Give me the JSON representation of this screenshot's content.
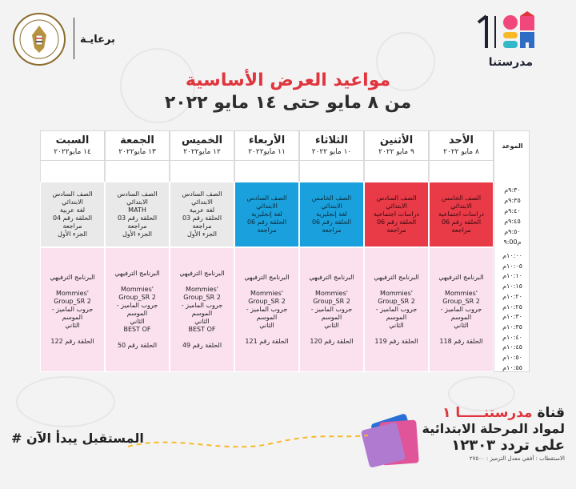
{
  "brand": {
    "name": "مدرستنا",
    "number": "1",
    "colors": {
      "pink": "#f0487a",
      "yellow": "#f7b928",
      "teal": "#33b8c9",
      "blue": "#2f6cc6",
      "red": "#e0353d"
    }
  },
  "ministry": {
    "logo": "ministry-of-education-seal",
    "sponsor": "برعايـة"
  },
  "title": {
    "line1": "مواعيد العرض الأساسية",
    "line2": "من ٨ مايو حتى ١٤ مايو ٢٠٢٢"
  },
  "schedule": {
    "time_header": "الموعد",
    "days": [
      {
        "day": "الأحد",
        "date": "٨ مايو ٢٠٢٢"
      },
      {
        "day": "الأثنين",
        "date": "٩ مايو ٢٠٢٢"
      },
      {
        "day": "الثلاثاء",
        "date": "١٠ مايو ٢٠٢٢"
      },
      {
        "day": "الأربعاء",
        "date": "١١ مايو٢٠٢٢"
      },
      {
        "day": "الخميس",
        "date": "١٢ مايو٢٠٢٢"
      },
      {
        "day": "الجمعة",
        "date": "١٣ مايو٢٠٢٢"
      },
      {
        "day": "السبت",
        "date": "١٤ مايو٢٠٢٢"
      }
    ],
    "times": [
      "٩:٣٠م",
      "٩:٣٥م",
      "٩:٤٠م",
      "٩:٤٥م",
      "٩:٥٠م",
      "٩:00م",
      "١٠:٠٠م",
      "١٠:٠٥م",
      "١٠:١٠م",
      "١٠:١٥م",
      "١٠:٢٠م",
      "١٠:٢٥م",
      "١٠:٣٠م",
      "١٠:٣٥م",
      "١٠:٤٠م",
      "١٠:٤٥م",
      "١٠:٥٠م",
      "١٠:٥٥م"
    ],
    "first_block": [
      {
        "color": "red",
        "lines": [
          "الصف الخامس الابتدائي",
          "دراسات اجتماعية",
          "الحلقة رقم 06 مراجعة"
        ]
      },
      {
        "color": "red",
        "lines": [
          "الصف السادس الابتدائي",
          "دراسات اجتماعية",
          "الحلقة رقم 06 مراجعة"
        ]
      },
      {
        "color": "blue",
        "lines": [
          "الصف الخامس الابتدائي",
          "لغة إنجليزية",
          "الحلقة رقم 06 مراجعة"
        ]
      },
      {
        "color": "blue",
        "lines": [
          "الصف السادس الابتدائي",
          "لغة إنجليزية",
          "الحلقة رقم 06 مراجعة"
        ]
      },
      {
        "color": "gray",
        "lines": [
          "الصف السادس الابتدائي",
          "لغة عربية",
          "الحلقة رقم 03 مراجعة",
          "الجزء الأول"
        ]
      },
      {
        "color": "gray",
        "lines": [
          "الصف السادس الابتدائي",
          "MATH",
          "الحلقة رقم 03 مراجعة",
          "الجزء الأول"
        ]
      },
      {
        "color": "gray",
        "lines": [
          "الصف السادس الابتدائي",
          "لغة عربية",
          "الحلقة رقم 04 مراجعة",
          "الجزء الأول"
        ]
      }
    ],
    "second_block": [
      {
        "title": "البرنامج الترفيهي",
        "lines": [
          "Mommies' Group_SR 2",
          "جروب الماميز - الموسم",
          "الثاني"
        ],
        "extra": "",
        "episode": "الحلقة رقم 118"
      },
      {
        "title": "البرنامج الترفيهي",
        "lines": [
          "Mommies' Group_SR 2",
          "جروب الماميز - الموسم",
          "الثاني"
        ],
        "extra": "",
        "episode": "الحلقة رقم 119"
      },
      {
        "title": "البرنامج الترفيهي",
        "lines": [
          "Mommies' Group_SR 2",
          "جروب الماميز - الموسم",
          "الثاني"
        ],
        "extra": "",
        "episode": "الحلقة رقم 120"
      },
      {
        "title": "البرنامج الترفيهي",
        "lines": [
          "Mommies' Group_SR 2",
          "جروب الماميز - الموسم",
          "الثاني"
        ],
        "extra": "",
        "episode": "الحلقة رقم 121"
      },
      {
        "title": "البرنامج الترفيهي",
        "lines": [
          "Mommies' Group_SR 2",
          "جروب الماميز - الموسم",
          "الثاني"
        ],
        "extra": "BEST OF",
        "episode": "الحلقة رقم 49"
      },
      {
        "title": "البرنامج الترفيهي",
        "lines": [
          "Mommies' Group_SR 2",
          "جروب الماميز - الموسم",
          "الثاني"
        ],
        "extra": "BEST OF",
        "episode": "الحلقة رقم 50"
      },
      {
        "title": "البرنامج الترفيهي",
        "lines": [
          "Mommies' Group_SR 2",
          "جروب الماميز - الموسم",
          "الثاني"
        ],
        "extra": "",
        "episode": "الحلقة رقم 122"
      }
    ]
  },
  "footer": {
    "channel_prefix": "قناة",
    "channel_name": "مدرستنـــــا ١",
    "line2": "لمواد المرحلة الابتدائية",
    "line3": "على تردد ١٢٣٠٣",
    "line4": "الاستقطاب : أفقي معدل الترميز : ٢٧٥٠٠",
    "slogan": "# المستقبل يبدأ الآن"
  }
}
